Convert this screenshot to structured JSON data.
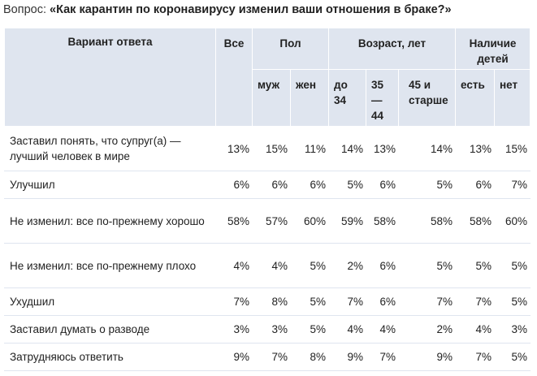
{
  "question": {
    "prefix": "Вопрос: ",
    "text": "«Как карантин по коронавирусу изменил ваши отношения в браке?»"
  },
  "table": {
    "header": {
      "answer": "Вариант ответа",
      "all": "Все",
      "gender": "Пол",
      "age": "Возраст, лет",
      "children": "Наличие детей",
      "male": "муж",
      "female": "жен",
      "age1": "до 34",
      "age2": "35 — 44",
      "age3": "45 и старше",
      "kids_yes": "есть",
      "kids_no": "нет"
    },
    "rows": [
      {
        "label": "Заставил понять, что супруг(а) — лучший человек в мире",
        "values": [
          "13%",
          "15%",
          "11%",
          "14%",
          "13%",
          "14%",
          "13%",
          "15%"
        ]
      },
      {
        "label": "Улучшил",
        "values": [
          "6%",
          "6%",
          "6%",
          "5%",
          "6%",
          "5%",
          "6%",
          "7%"
        ]
      },
      {
        "label": "Не изменил: все по-прежнему хорошо",
        "values": [
          "58%",
          "57%",
          "60%",
          "59%",
          "58%",
          "58%",
          "58%",
          "60%"
        ]
      },
      {
        "label": "Не изменил: все по-прежнему плохо",
        "values": [
          "4%",
          "4%",
          "5%",
          "2%",
          "6%",
          "5%",
          "5%",
          "5%"
        ]
      },
      {
        "label": "Ухудшил",
        "values": [
          "7%",
          "8%",
          "5%",
          "7%",
          "6%",
          "7%",
          "7%",
          "5%"
        ]
      },
      {
        "label": "Заставил думать о разводе",
        "values": [
          "3%",
          "3%",
          "5%",
          "4%",
          "4%",
          "2%",
          "4%",
          "3%"
        ]
      },
      {
        "label": "Затрудняюсь ответить",
        "values": [
          "9%",
          "7%",
          "8%",
          "9%",
          "7%",
          "9%",
          "7%",
          "5%"
        ]
      }
    ]
  }
}
